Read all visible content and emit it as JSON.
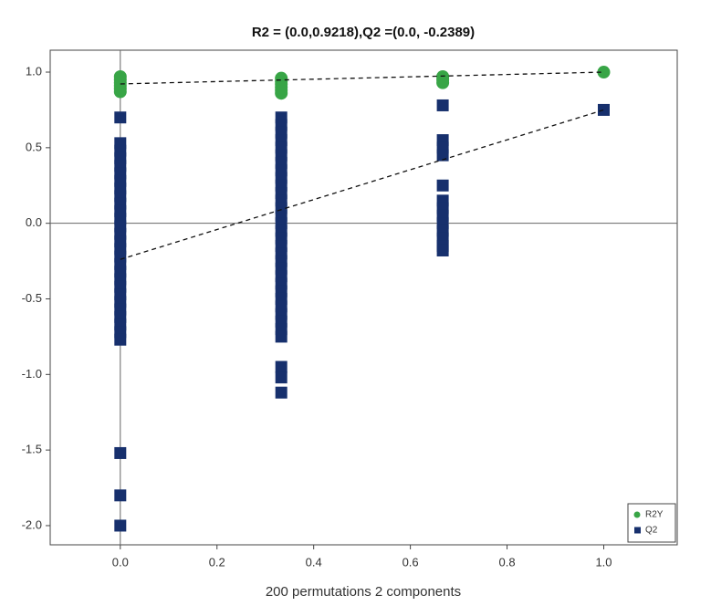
{
  "chart_data": {
    "type": "scatter",
    "title": "R2 = (0.0,0.9218),Q2 =(0.0, -0.2389)",
    "x_label": "200 permutations 2 components",
    "xlim": [
      -0.145,
      1.152
    ],
    "ylim": [
      -2.127,
      1.145
    ],
    "xticks": [
      {
        "value": 0,
        "label": "0.0"
      },
      {
        "value": 0.2,
        "label": "0.2"
      },
      {
        "value": 0.4,
        "label": "0.4"
      },
      {
        "value": 0.6,
        "label": "0.6"
      },
      {
        "value": 0.8,
        "label": "0.8"
      },
      {
        "value": 1,
        "label": "1.0"
      }
    ],
    "yticks": [
      {
        "value": 1,
        "label": "1.0"
      },
      {
        "value": 0.5,
        "label": "0.5"
      },
      {
        "value": 0,
        "label": "0.0"
      },
      {
        "value": -0.5,
        "label": "-0.5"
      },
      {
        "value": -1,
        "label": "-1.0"
      },
      {
        "value": -1.5,
        "label": "-1.5"
      },
      {
        "value": -2,
        "label": "-2.0"
      }
    ],
    "legend": "lower right",
    "series": [
      {
        "name": "R2Y",
        "color": "#38a546",
        "marker": "circle",
        "x": [
          0,
          0,
          0,
          0,
          0,
          0,
          0.333,
          0.333,
          0.333,
          0.333,
          0.333,
          0.333,
          0.667,
          0.667,
          0.667,
          1
        ],
        "values": [
          0.97,
          0.95,
          0.93,
          0.91,
          0.89,
          0.87,
          0.96,
          0.94,
          0.92,
          0.9,
          0.88,
          0.86,
          0.97,
          0.95,
          0.93,
          1.0
        ]
      },
      {
        "name": "Q2",
        "color": "#17306d",
        "marker": "square",
        "x": [
          0,
          0,
          0,
          0,
          0,
          0,
          0,
          0,
          0,
          0,
          0,
          0,
          0,
          0,
          0,
          0,
          0,
          0,
          0,
          0,
          0,
          0,
          0,
          0,
          0,
          0,
          0,
          0,
          0,
          0,
          0,
          0.333,
          0.333,
          0.333,
          0.333,
          0.333,
          0.333,
          0.333,
          0.333,
          0.333,
          0.333,
          0.333,
          0.333,
          0.333,
          0.333,
          0.333,
          0.333,
          0.333,
          0.333,
          0.333,
          0.333,
          0.333,
          0.333,
          0.333,
          0.333,
          0.333,
          0.333,
          0.333,
          0.333,
          0.333,
          0.333,
          0.333,
          0.333,
          0.333,
          0.667,
          0.667,
          0.667,
          0.667,
          0.667,
          0.667,
          0.667,
          0.667,
          0.667,
          0.667,
          0.667,
          0.667,
          0.667,
          1
        ],
        "values": [
          0.7,
          0.53,
          0.48,
          0.43,
          0.38,
          0.33,
          0.28,
          0.23,
          0.18,
          0.13,
          0.08,
          0.03,
          -0.02,
          -0.07,
          -0.12,
          -0.17,
          -0.22,
          -0.27,
          -0.32,
          -0.37,
          -0.42,
          -0.47,
          -0.52,
          -0.57,
          -0.62,
          -0.67,
          -0.72,
          -0.77,
          -1.52,
          -1.8,
          -2.0,
          0.7,
          0.65,
          0.6,
          0.55,
          0.5,
          0.45,
          0.4,
          0.35,
          0.3,
          0.25,
          0.2,
          0.15,
          0.1,
          0.05,
          0.0,
          -0.05,
          -0.1,
          -0.15,
          -0.2,
          -0.25,
          -0.3,
          -0.35,
          -0.4,
          -0.45,
          -0.5,
          -0.55,
          -0.6,
          -0.65,
          -0.7,
          -0.75,
          -0.95,
          -1.02,
          -1.12,
          0.78,
          0.55,
          0.5,
          0.45,
          0.25,
          0.15,
          0.1,
          0.05,
          0.0,
          -0.05,
          -0.1,
          -0.15,
          -0.18,
          0.75
        ]
      }
    ],
    "trend_lines": [
      {
        "x": [
          0,
          1
        ],
        "values": [
          0.9218,
          1.0
        ]
      },
      {
        "x": [
          0,
          1
        ],
        "values": [
          -0.2389,
          0.75
        ]
      }
    ]
  }
}
